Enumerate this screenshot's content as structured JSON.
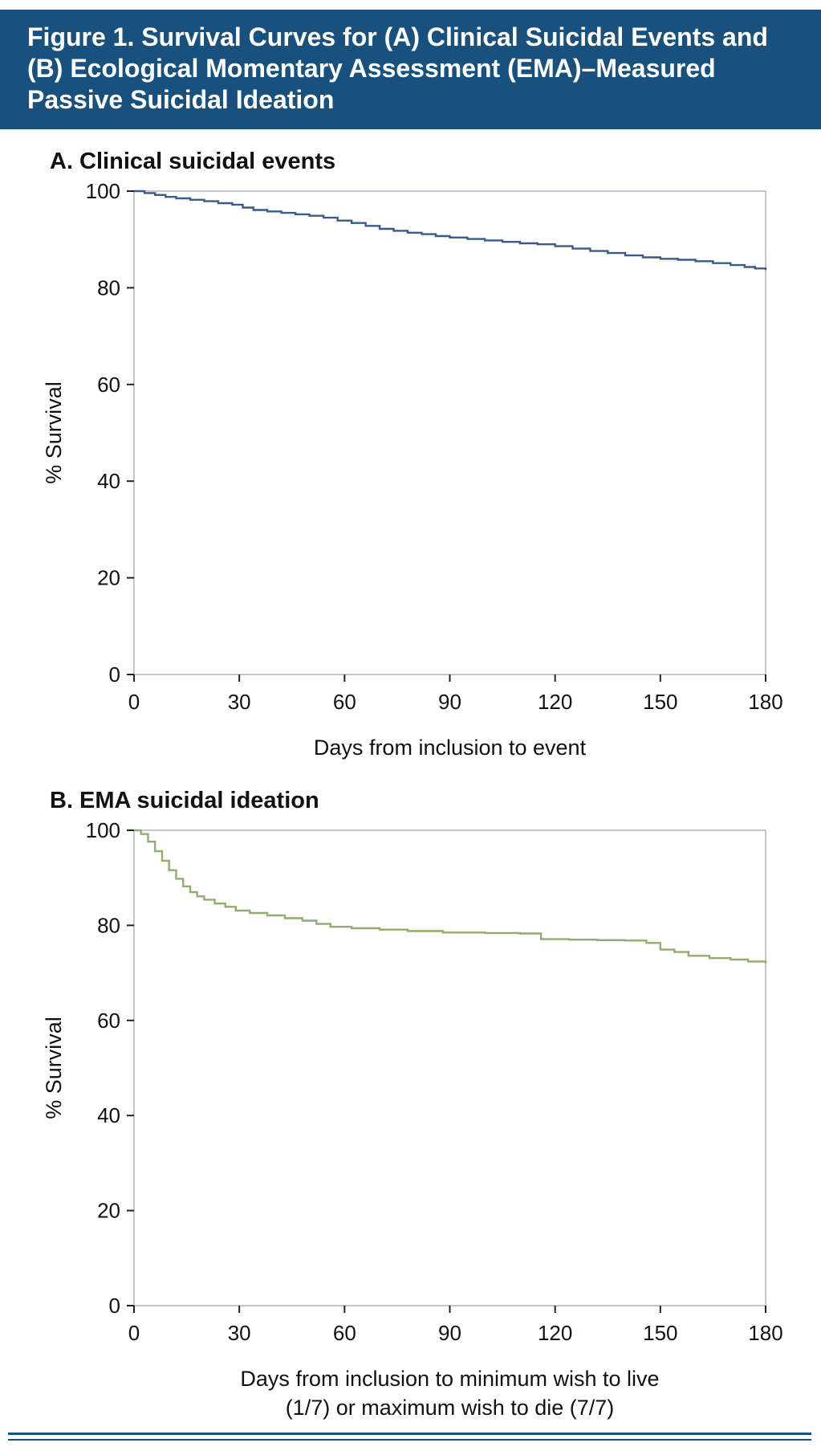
{
  "header": {
    "lines": [
      "Figure 1. Survival Curves for (A) Clinical Suicidal Events and",
      "(B) Ecological Momentary Assessment (EMA)–Measured",
      "Passive Suicidal Ideation"
    ],
    "background_color": "#18517e",
    "text_color": "#ffffff"
  },
  "chart_data": [
    {
      "type": "line",
      "subtype": "kaplan-meier-step",
      "panel_label": "A. Clinical suicidal events",
      "xlabel_lines": [
        "Days from inclusion to event"
      ],
      "ylabel": "% Survival",
      "xlim": [
        0,
        180
      ],
      "ylim": [
        0,
        100
      ],
      "xticks": [
        0,
        30,
        60,
        90,
        120,
        150,
        180
      ],
      "yticks": [
        0,
        20,
        40,
        60,
        80,
        100
      ],
      "grid": false,
      "legend": "none",
      "line_color": "#3a5a8f",
      "frame_color": "#aab6c2",
      "points": [
        [
          0,
          100
        ],
        [
          3,
          99.6
        ],
        [
          6,
          99.2
        ],
        [
          9,
          98.8
        ],
        [
          12,
          98.5
        ],
        [
          16,
          98.2
        ],
        [
          20,
          97.9
        ],
        [
          24,
          97.5
        ],
        [
          28,
          97.2
        ],
        [
          31,
          96.6
        ],
        [
          34,
          96.1
        ],
        [
          38,
          95.8
        ],
        [
          42,
          95.5
        ],
        [
          46,
          95.2
        ],
        [
          50,
          94.9
        ],
        [
          54,
          94.5
        ],
        [
          58,
          93.9
        ],
        [
          62,
          93.4
        ],
        [
          66,
          92.8
        ],
        [
          70,
          92.2
        ],
        [
          74,
          91.8
        ],
        [
          78,
          91.4
        ],
        [
          82,
          91.1
        ],
        [
          86,
          90.7
        ],
        [
          90,
          90.4
        ],
        [
          95,
          90.1
        ],
        [
          100,
          89.8
        ],
        [
          105,
          89.5
        ],
        [
          110,
          89.2
        ],
        [
          115,
          89.0
        ],
        [
          120,
          88.6
        ],
        [
          125,
          88.1
        ],
        [
          130,
          87.6
        ],
        [
          135,
          87.2
        ],
        [
          140,
          86.7
        ],
        [
          145,
          86.3
        ],
        [
          150,
          86.0
        ],
        [
          155,
          85.8
        ],
        [
          160,
          85.5
        ],
        [
          165,
          85.1
        ],
        [
          170,
          84.7
        ],
        [
          174,
          84.3
        ],
        [
          177,
          84.0
        ],
        [
          180,
          83.7
        ]
      ]
    },
    {
      "type": "line",
      "subtype": "kaplan-meier-step",
      "panel_label": "B. EMA suicidal ideation",
      "xlabel_lines": [
        "Days from inclusion to minimum wish to live",
        "(1/7) or maximum wish to die (7/7)"
      ],
      "ylabel": "% Survival",
      "xlim": [
        0,
        180
      ],
      "ylim": [
        0,
        100
      ],
      "xticks": [
        0,
        30,
        60,
        90,
        120,
        150,
        180
      ],
      "yticks": [
        0,
        20,
        40,
        60,
        80,
        100
      ],
      "grid": false,
      "legend": "none",
      "line_color": "#8fae6a",
      "frame_color": "#aab6c2",
      "points": [
        [
          0,
          100
        ],
        [
          2,
          99.2
        ],
        [
          4,
          97.6
        ],
        [
          6,
          95.6
        ],
        [
          8,
          93.6
        ],
        [
          10,
          91.6
        ],
        [
          12,
          89.8
        ],
        [
          14,
          88.2
        ],
        [
          16,
          87.0
        ],
        [
          18,
          86.1
        ],
        [
          20,
          85.4
        ],
        [
          23,
          84.6
        ],
        [
          26,
          83.9
        ],
        [
          29,
          83.1
        ],
        [
          33,
          82.6
        ],
        [
          38,
          82.1
        ],
        [
          43,
          81.5
        ],
        [
          48,
          81.0
        ],
        [
          52,
          80.3
        ],
        [
          56,
          79.7
        ],
        [
          62,
          79.4
        ],
        [
          70,
          79.1
        ],
        [
          78,
          78.8
        ],
        [
          88,
          78.5
        ],
        [
          100,
          78.4
        ],
        [
          110,
          78.3
        ],
        [
          116,
          77.1
        ],
        [
          124,
          77.0
        ],
        [
          132,
          76.9
        ],
        [
          140,
          76.8
        ],
        [
          146,
          76.3
        ],
        [
          150,
          74.9
        ],
        [
          154,
          74.4
        ],
        [
          158,
          73.6
        ],
        [
          164,
          73.1
        ],
        [
          170,
          72.8
        ],
        [
          175,
          72.4
        ],
        [
          180,
          72.0
        ]
      ]
    }
  ]
}
